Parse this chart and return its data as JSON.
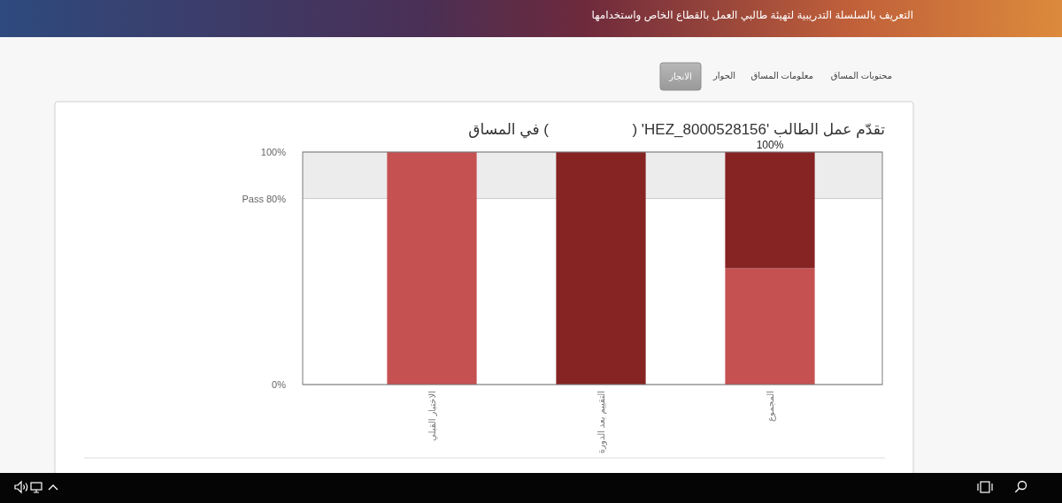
{
  "chart_data": {
    "type": "bar",
    "title": "تقدّم عمل الطالب 'HEZ_8000528156' (                    ) في المساق",
    "annotations": [
      "التعريف بالسلسلة التدريبية لتهيئة طالبي العمل بالقطاع الخاص واستخدامها",
      "محتويات المساق",
      "معلومات المساق",
      "الحوار",
      "الانجاز"
    ],
    "categories": [
      "الاختبار القبلي",
      "التقييم بعد الدورة",
      "المجموع"
    ],
    "series": [
      {
        "color": "#c65151",
        "values": [
          100,
          null,
          50
        ]
      },
      {
        "color": "#862323",
        "values": [
          null,
          100,
          50
        ]
      }
    ],
    "stacked": true,
    "ylim": [
      0,
      100
    ],
    "yticks": [
      {
        "value": 0,
        "label": "0%"
      },
      {
        "value": 80,
        "label": "Pass 80%"
      },
      {
        "value": 100,
        "label": "100%"
      }
    ],
    "bands": [
      {
        "axis": "y",
        "from": 80,
        "to": 100,
        "color": "#ececec"
      }
    ],
    "totals": [
      null,
      null,
      "100%"
    ],
    "grid": "y"
  }
}
